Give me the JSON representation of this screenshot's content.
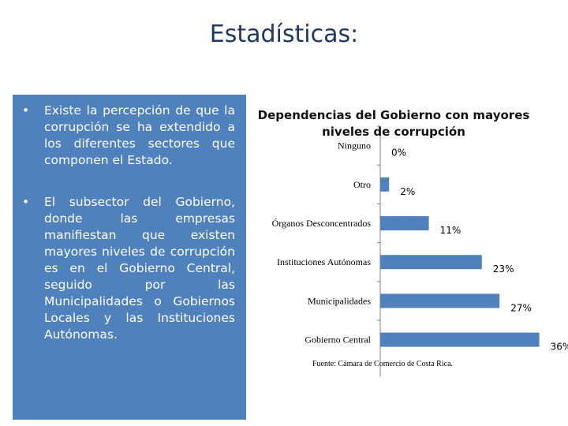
{
  "slide": {
    "title": "Estadísticas:"
  },
  "bullets": [
    "Existe la percepción de que la corrupción se ha extendido a los diferentes sectores que componen el Estado.",
    "El subsector del Gobierno, donde las empresas manifiestan que existen mayores niveles de corrupción es en el Gobierno Central, seguido por las Municipalidades o Gobiernos Locales y las Instituciones Autónomas."
  ],
  "bullet_symbol": "•",
  "colors": {
    "title": "#1f3864",
    "panel": "#4f81bd",
    "bar": "#4f81bd"
  },
  "chart_data": {
    "type": "bar",
    "orientation": "horizontal",
    "title": "Dependencias del Gobierno con mayores niveles de corrupción",
    "categories": [
      "Ninguno",
      "Otro",
      "Órganos Desconcentrados",
      "Instituciones Autónomas",
      "Municipalidades",
      "Gobierno Central"
    ],
    "values": [
      0,
      2,
      11,
      23,
      27,
      36
    ],
    "value_labels": [
      "0%",
      "2%",
      "11%",
      "23%",
      "27%",
      "36%"
    ],
    "xlim": [
      0,
      36
    ],
    "grid": false,
    "legend": "none",
    "source": "Fuente: Cámara de Comercio de Costa Rica."
  }
}
